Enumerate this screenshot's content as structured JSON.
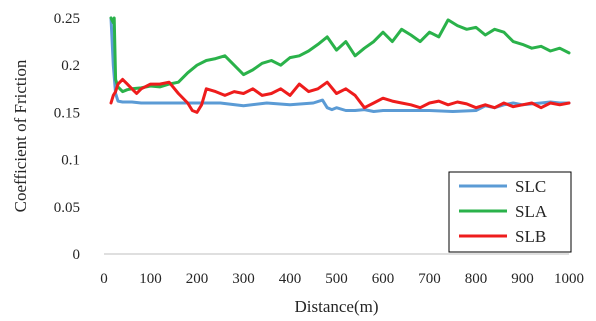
{
  "chart_data": {
    "type": "line",
    "title": "",
    "xlabel": "Distance(m)",
    "ylabel": "Coefficient   of Friction",
    "xlim": [
      0,
      1000
    ],
    "ylim": [
      0,
      0.25
    ],
    "x_ticks": [
      0,
      100,
      200,
      300,
      400,
      500,
      600,
      700,
      800,
      900,
      1000
    ],
    "y_ticks": [
      0,
      0.05,
      0.1,
      0.15,
      0.2,
      0.25
    ],
    "x_tick_labels": [
      "0",
      "100",
      "200",
      "300",
      "400",
      "500",
      "600",
      "700",
      "800",
      "900",
      "1000"
    ],
    "y_tick_labels": [
      "0",
      "0.05",
      "0.1",
      "0.15",
      "0.2",
      "0.25"
    ],
    "grid": "none",
    "legend_position": "bottom-right",
    "series": [
      {
        "name": "SLC",
        "color": "#5b9bd5",
        "x": [
          15,
          20,
          25,
          30,
          40,
          50,
          60,
          80,
          100,
          120,
          150,
          200,
          250,
          300,
          350,
          400,
          450,
          470,
          480,
          490,
          500,
          520,
          540,
          560,
          580,
          600,
          650,
          700,
          750,
          800,
          820,
          840,
          860,
          880,
          900,
          920,
          940,
          960,
          980,
          1000
        ],
        "y": [
          0.25,
          0.2,
          0.17,
          0.162,
          0.161,
          0.161,
          0.161,
          0.16,
          0.16,
          0.16,
          0.16,
          0.16,
          0.16,
          0.157,
          0.16,
          0.158,
          0.16,
          0.163,
          0.155,
          0.153,
          0.155,
          0.152,
          0.152,
          0.153,
          0.151,
          0.152,
          0.152,
          0.152,
          0.151,
          0.152,
          0.157,
          0.155,
          0.158,
          0.16,
          0.158,
          0.159,
          0.16,
          0.161,
          0.16,
          0.16
        ]
      },
      {
        "name": "SLA",
        "color": "#2ab24a",
        "x": [
          15,
          20,
          22,
          25,
          30,
          40,
          50,
          60,
          80,
          100,
          120,
          140,
          160,
          180,
          200,
          220,
          240,
          260,
          280,
          300,
          320,
          340,
          360,
          380,
          400,
          420,
          440,
          460,
          480,
          500,
          520,
          540,
          560,
          580,
          600,
          620,
          640,
          660,
          680,
          700,
          720,
          740,
          760,
          780,
          800,
          820,
          840,
          860,
          880,
          900,
          920,
          940,
          960,
          980,
          1000
        ],
        "y": [
          0.25,
          0.245,
          0.25,
          0.185,
          0.177,
          0.172,
          0.174,
          0.175,
          0.176,
          0.178,
          0.177,
          0.18,
          0.182,
          0.192,
          0.2,
          0.205,
          0.207,
          0.21,
          0.2,
          0.19,
          0.195,
          0.202,
          0.205,
          0.2,
          0.208,
          0.21,
          0.215,
          0.222,
          0.23,
          0.216,
          0.225,
          0.21,
          0.218,
          0.225,
          0.235,
          0.225,
          0.238,
          0.232,
          0.225,
          0.235,
          0.23,
          0.248,
          0.242,
          0.238,
          0.24,
          0.232,
          0.238,
          0.235,
          0.225,
          0.222,
          0.218,
          0.22,
          0.215,
          0.218,
          0.213
        ]
      },
      {
        "name": "SLB",
        "color": "#ee1c1c",
        "x": [
          15,
          20,
          25,
          30,
          40,
          50,
          60,
          70,
          80,
          100,
          120,
          140,
          160,
          180,
          190,
          200,
          210,
          220,
          240,
          260,
          280,
          300,
          320,
          340,
          360,
          380,
          400,
          420,
          440,
          460,
          480,
          500,
          520,
          540,
          560,
          580,
          600,
          620,
          640,
          660,
          680,
          700,
          720,
          740,
          760,
          780,
          800,
          820,
          840,
          860,
          880,
          900,
          920,
          940,
          960,
          980,
          1000
        ],
        "y": [
          0.16,
          0.168,
          0.172,
          0.18,
          0.185,
          0.18,
          0.175,
          0.17,
          0.175,
          0.18,
          0.18,
          0.182,
          0.17,
          0.16,
          0.152,
          0.15,
          0.158,
          0.175,
          0.172,
          0.168,
          0.172,
          0.17,
          0.175,
          0.168,
          0.17,
          0.175,
          0.168,
          0.18,
          0.172,
          0.175,
          0.182,
          0.17,
          0.175,
          0.168,
          0.155,
          0.16,
          0.165,
          0.162,
          0.16,
          0.158,
          0.155,
          0.16,
          0.162,
          0.158,
          0.161,
          0.159,
          0.155,
          0.158,
          0.155,
          0.16,
          0.156,
          0.158,
          0.16,
          0.155,
          0.16,
          0.158,
          0.16
        ]
      }
    ]
  }
}
